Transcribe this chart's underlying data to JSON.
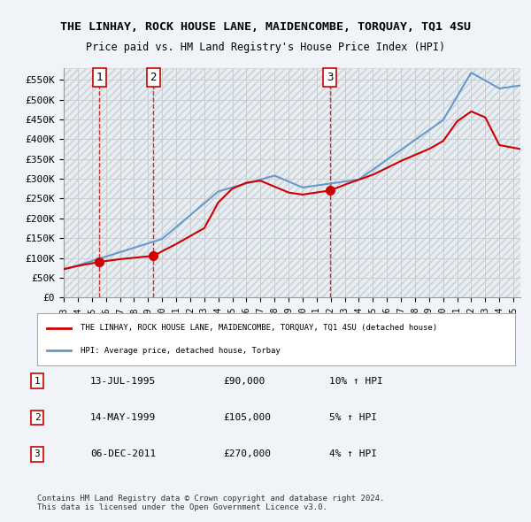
{
  "title": "THE LINHAY, ROCK HOUSE LANE, MAIDENCOMBE, TORQUAY, TQ1 4SU",
  "subtitle": "Price paid vs. HM Land Registry's House Price Index (HPI)",
  "ylabel": "",
  "ylim": [
    0,
    580000
  ],
  "yticks": [
    0,
    50000,
    100000,
    150000,
    200000,
    250000,
    300000,
    350000,
    400000,
    450000,
    500000,
    550000
  ],
  "ytick_labels": [
    "£0",
    "£50K",
    "£100K",
    "£150K",
    "£200K",
    "£250K",
    "£300K",
    "£350K",
    "£400K",
    "£450K",
    "£500K",
    "£550K"
  ],
  "price_paid_color": "#cc0000",
  "hpi_color": "#6699cc",
  "sale_marker_color": "#cc0000",
  "dashed_line_color": "#cc0000",
  "background_color": "#f0f4f8",
  "plot_bg_color": "#ffffff",
  "hatch_color": "#d0d8e0",
  "sales": [
    {
      "date": 1995.54,
      "price": 90000,
      "label": "1"
    },
    {
      "date": 1999.37,
      "price": 105000,
      "label": "2"
    },
    {
      "date": 2011.93,
      "price": 270000,
      "label": "3"
    }
  ],
  "legend_entries": [
    "THE LINHAY, ROCK HOUSE LANE, MAIDENCOMBE, TORQUAY, TQ1 4SU (detached house)",
    "HPI: Average price, detached house, Torbay"
  ],
  "table_rows": [
    {
      "num": "1",
      "date": "13-JUL-1995",
      "price": "£90,000",
      "hpi": "10% ↑ HPI"
    },
    {
      "num": "2",
      "date": "14-MAY-1999",
      "price": "£105,000",
      "hpi": "5% ↑ HPI"
    },
    {
      "num": "3",
      "date": "06-DEC-2011",
      "price": "£270,000",
      "hpi": "4% ↑ HPI"
    }
  ],
  "footer": "Contains HM Land Registry data © Crown copyright and database right 2024.\nThis data is licensed under the Open Government Licence v3.0.",
  "xmin": 1993.0,
  "xmax": 2025.5
}
